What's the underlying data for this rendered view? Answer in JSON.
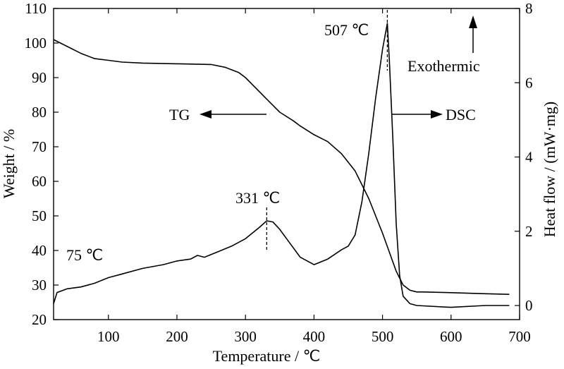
{
  "chart_data": {
    "type": "line",
    "xlabel": "Temperature / ℃",
    "ylabel": "Weight / %",
    "y2label": "Heat flow / (mW·mg)",
    "xlim": [
      20,
      700
    ],
    "ylim": [
      20,
      110
    ],
    "y2lim": [
      -0.38,
      8
    ],
    "xticks": [
      100,
      200,
      300,
      400,
      500,
      600,
      700
    ],
    "yticks": [
      20,
      30,
      40,
      50,
      60,
      70,
      80,
      90,
      100,
      110
    ],
    "y2ticks": [
      0,
      2,
      4,
      6,
      8
    ],
    "grid": false,
    "series": [
      {
        "name": "TG",
        "axis": "left",
        "x": [
          20,
          40,
          60,
          80,
          100,
          120,
          150,
          200,
          250,
          270,
          290,
          300,
          310,
          330,
          350,
          370,
          380,
          400,
          420,
          440,
          460,
          480,
          500,
          520,
          530,
          540,
          550,
          560,
          600,
          650,
          685
        ],
        "y": [
          101,
          99,
          97,
          95.5,
          95,
          94.5,
          94.2,
          94,
          93.8,
          93,
          91.5,
          90,
          88,
          84,
          80,
          77.5,
          76,
          73.5,
          71.5,
          68,
          63,
          55,
          45,
          34,
          30,
          28.5,
          28,
          28,
          27.8,
          27.5,
          27.3
        ]
      },
      {
        "name": "DSC",
        "axis": "right",
        "x": [
          20,
          25,
          40,
          60,
          80,
          100,
          120,
          150,
          180,
          200,
          220,
          230,
          240,
          260,
          280,
          300,
          320,
          331,
          340,
          350,
          360,
          380,
          400,
          420,
          440,
          450,
          460,
          470,
          480,
          490,
          500,
          507,
          510,
          515,
          520,
          525,
          530,
          540,
          550,
          600,
          650,
          685
        ],
        "y": [
          0.05,
          0.35,
          0.45,
          0.5,
          0.6,
          0.75,
          0.85,
          1.0,
          1.1,
          1.2,
          1.25,
          1.35,
          1.3,
          1.45,
          1.6,
          1.8,
          2.1,
          2.28,
          2.25,
          2.05,
          1.8,
          1.3,
          1.1,
          1.25,
          1.5,
          1.6,
          1.9,
          2.8,
          4.1,
          5.6,
          6.9,
          7.6,
          6.6,
          4.5,
          2.2,
          0.8,
          0.25,
          0.05,
          0.0,
          -0.05,
          0.0,
          0.0
        ]
      }
    ],
    "annotations": {
      "t75": "75 ℃",
      "t331": "331 ℃",
      "t507": "507 ℃",
      "exothermic": "Exothermic",
      "tg_label": "TG",
      "dsc_label": "DSC",
      "t331_x": 331,
      "t507_x": 507
    }
  }
}
